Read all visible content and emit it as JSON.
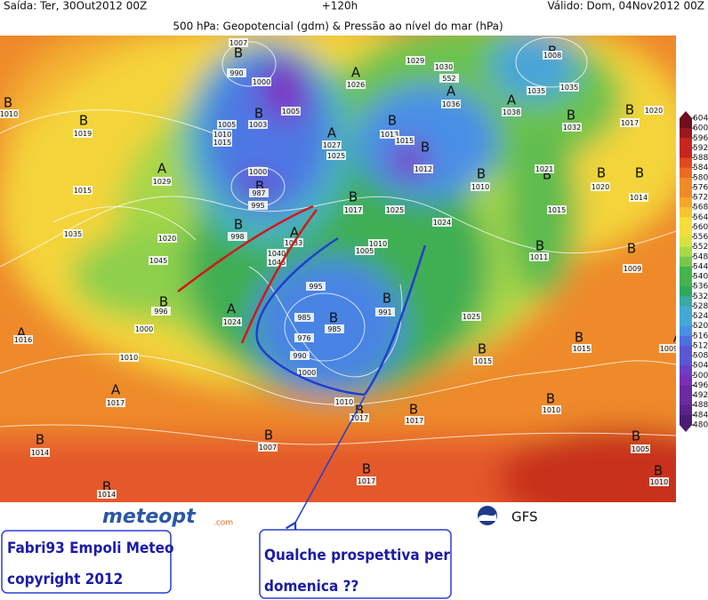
{
  "header": {
    "issued": "Saída: Ter, 30Out2012 00Z",
    "lead": "+120h",
    "valid": "Válido: Dom, 04Nov2012 00Z",
    "title": "500 hPa: Geopotencial (gdm) & Pressão ao nível do mar (hPa)"
  },
  "map": {
    "letters": [
      "B",
      "B",
      "A",
      "A",
      "A",
      "B",
      "B",
      "B",
      "B",
      "B",
      "A",
      "B",
      "B",
      "A",
      "B",
      "B",
      "B",
      "B",
      "B",
      "B",
      "B",
      "A",
      "B",
      "A",
      "B",
      "B",
      "B",
      "B",
      "A",
      "B",
      "B",
      "A",
      "A",
      "B",
      "B",
      "B",
      "B",
      "B",
      "B",
      "B",
      "B",
      "B"
    ],
    "isobar_labels": [
      1007,
      990,
      1000,
      1003,
      1005,
      1010,
      1015,
      1005,
      1026,
      1029,
      1030,
      552,
      1036,
      1038,
      1008,
      1035,
      1035,
      1032,
      1020,
      1017,
      1010,
      1019,
      1015,
      1029,
      1027,
      1025,
      1013,
      1015,
      1012,
      1010,
      1021,
      1020,
      1014,
      1000,
      987,
      995,
      998,
      1017,
      1025,
      1024,
      1015,
      1035,
      1020,
      1033,
      1040,
      1045,
      1010,
      1005,
      1011,
      1009,
      1045,
      996,
      1024,
      995,
      985,
      976,
      985,
      991,
      990,
      1000,
      1025,
      1015,
      1015,
      1009,
      1016,
      1000,
      1010,
      1017,
      1010,
      1017,
      1017,
      1010,
      1014,
      1007,
      1005,
      1014,
      1017,
      1010
    ]
  },
  "colorbar": {
    "ticks": [
      604,
      600,
      596,
      592,
      588,
      584,
      580,
      576,
      572,
      568,
      564,
      560,
      556,
      552,
      548,
      544,
      540,
      536,
      532,
      528,
      524,
      520,
      516,
      512,
      508,
      504,
      500,
      496,
      492,
      488,
      484,
      480
    ],
    "colors": [
      "#6e0f1e",
      "#9a1820",
      "#c8251e",
      "#e0481f",
      "#ea6a22",
      "#f08a25",
      "#f4a72b",
      "#f6c531",
      "#f3df3a",
      "#d6e23f",
      "#a9d94a",
      "#78c84e",
      "#45b44c",
      "#2fa85e",
      "#3aa9a0",
      "#43a9d4",
      "#4a8fe6",
      "#4f70e0",
      "#5a56d4",
      "#6c3ec6",
      "#7a2fb4",
      "#6a2aa0",
      "#5a238a",
      "#4a1d74"
    ]
  },
  "logos": {
    "site": "meteopt",
    "site_suffix": ".com",
    "model": "GFS"
  },
  "notes": {
    "author": "Fabri93 Empoli Meteo",
    "copyright": "copyright 2012",
    "question_1": "Qualche prospettiva per",
    "question_2": "domenica ??"
  }
}
